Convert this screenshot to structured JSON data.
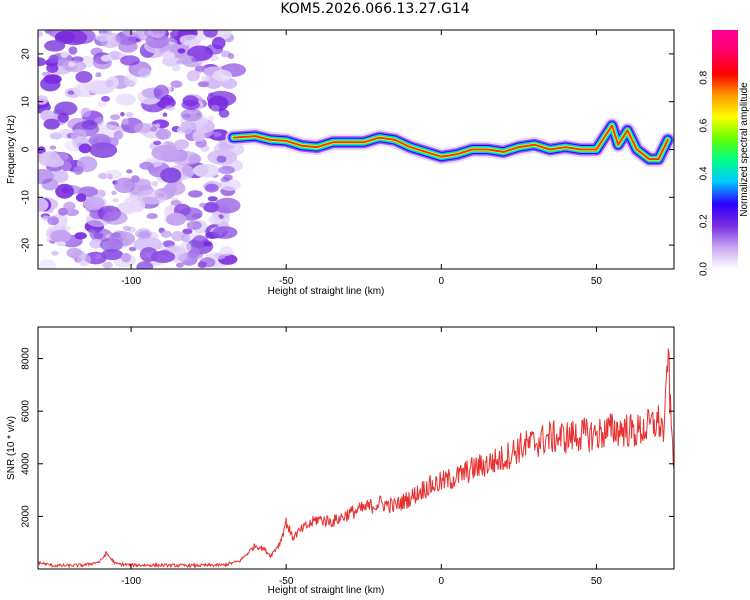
{
  "title": "KOM5.2026.066.13.27.G14",
  "chart_data": [
    {
      "type": "heatmap",
      "xlabel": "Height of straight line (km)",
      "ylabel": "Frequency (Hz)",
      "xlim": [
        -130,
        75
      ],
      "ylim": [
        -25,
        25
      ],
      "xticks": [
        -100,
        -50,
        0,
        50
      ],
      "yticks": [
        -20,
        -10,
        0,
        10,
        20
      ],
      "colorbar": {
        "label": "Normalized spectral amplitude",
        "range": [
          0,
          1
        ],
        "ticks": [
          0.0,
          0.2,
          0.4,
          0.6,
          0.8
        ],
        "colormap": [
          "#ffffff",
          "#c7a6f2",
          "#7a2be0",
          "#2a00ff",
          "#00c8ff",
          "#00ff88",
          "#66ff00",
          "#ffff00",
          "#ff9900",
          "#ff0000",
          "#ff0066",
          "#ff0099"
        ]
      },
      "noise_region": {
        "x_start": -130,
        "x_end": -67,
        "y_start": -25,
        "y_end": 25
      },
      "ridge": [
        {
          "x": -67,
          "y": 2.5
        },
        {
          "x": -60,
          "y": 2.8
        },
        {
          "x": -55,
          "y": 2.0
        },
        {
          "x": -50,
          "y": 1.8
        },
        {
          "x": -45,
          "y": 0.8
        },
        {
          "x": -40,
          "y": 0.5
        },
        {
          "x": -35,
          "y": 1.5
        },
        {
          "x": -30,
          "y": 1.5
        },
        {
          "x": -25,
          "y": 1.5
        },
        {
          "x": -20,
          "y": 2.5
        },
        {
          "x": -15,
          "y": 2.0
        },
        {
          "x": -10,
          "y": 0.5
        },
        {
          "x": -5,
          "y": -0.5
        },
        {
          "x": 0,
          "y": -1.5
        },
        {
          "x": 5,
          "y": -1.0
        },
        {
          "x": 10,
          "y": 0.0
        },
        {
          "x": 15,
          "y": 0.0
        },
        {
          "x": 20,
          "y": -0.5
        },
        {
          "x": 25,
          "y": 0.5
        },
        {
          "x": 30,
          "y": 1.0
        },
        {
          "x": 35,
          "y": 0.0
        },
        {
          "x": 40,
          "y": 0.5
        },
        {
          "x": 45,
          "y": 0.0
        },
        {
          "x": 50,
          "y": 0.0
        },
        {
          "x": 53,
          "y": 3.0
        },
        {
          "x": 55,
          "y": 5.0
        },
        {
          "x": 57,
          "y": 1.0
        },
        {
          "x": 60,
          "y": 4.0
        },
        {
          "x": 63,
          "y": 0.0
        },
        {
          "x": 67,
          "y": -2.0
        },
        {
          "x": 70,
          "y": -2.0
        },
        {
          "x": 73,
          "y": 2.0
        }
      ]
    },
    {
      "type": "line",
      "xlabel": "Height of straight line (km)",
      "ylabel": "SNR (10 * v/v)",
      "xlim": [
        -130,
        75
      ],
      "ylim": [
        0,
        9200
      ],
      "xticks": [
        -100,
        -50,
        0,
        50
      ],
      "yticks": [
        2000,
        4000,
        6000,
        8000
      ],
      "color": "#e83030",
      "series": [
        {
          "x": [
            -130,
            -125,
            -120,
            -115,
            -110,
            -108,
            -105,
            -100,
            -90,
            -80,
            -70,
            -65,
            -62,
            -60,
            -57,
            -55,
            -52,
            -50,
            -48,
            -45,
            -40,
            -35,
            -30,
            -25,
            -20,
            -15,
            -10,
            -5,
            0,
            5,
            10,
            15,
            20,
            25,
            30,
            35,
            40,
            45,
            50,
            55,
            60,
            62,
            65,
            70,
            72,
            73,
            74,
            75
          ],
          "y": [
            250,
            130,
            130,
            150,
            280,
            600,
            200,
            150,
            140,
            130,
            150,
            300,
            650,
            900,
            750,
            500,
            1000,
            1800,
            1200,
            1500,
            1900,
            1800,
            2100,
            2300,
            2500,
            2400,
            2700,
            3100,
            3300,
            3500,
            3800,
            4000,
            4200,
            4600,
            4800,
            5000,
            5000,
            5100,
            5100,
            5300,
            5300,
            5200,
            5300,
            5600,
            5200,
            8500,
            5500,
            4200
          ]
        }
      ]
    }
  ]
}
